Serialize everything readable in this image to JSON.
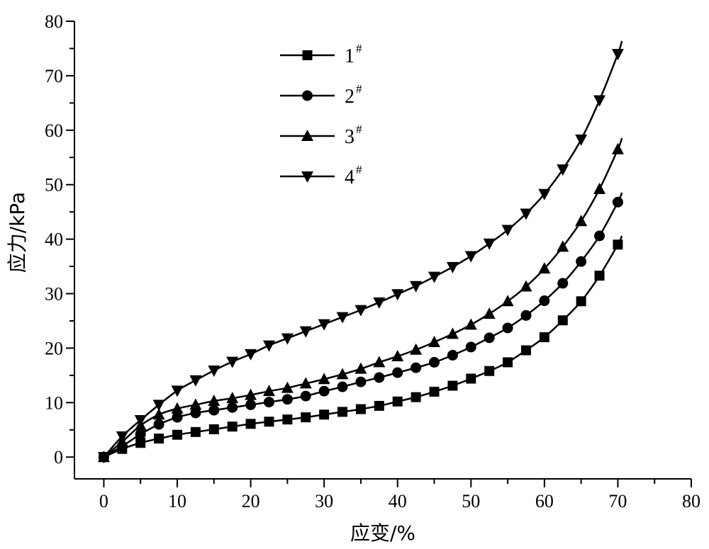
{
  "chart_data": {
    "type": "line",
    "xlabel": "应变/%",
    "ylabel": "应力/kPa",
    "xlim": [
      -4,
      80
    ],
    "ylim": [
      -4,
      80
    ],
    "x_ticks": [
      0,
      10,
      20,
      30,
      40,
      50,
      60,
      70,
      80
    ],
    "y_ticks": [
      0,
      10,
      20,
      30,
      40,
      50,
      60,
      70,
      80
    ],
    "grid": false,
    "legend_position": "top-center",
    "series": [
      {
        "name": "1",
        "superscript": "#",
        "marker": "square",
        "x": [
          0,
          2.5,
          5,
          7.5,
          10,
          12.5,
          15,
          17.5,
          20,
          22.5,
          25,
          27.5,
          30,
          32.5,
          35,
          37.5,
          40,
          42.5,
          45,
          47.5,
          50,
          52.5,
          55,
          57.5,
          60,
          62.5,
          65,
          67.5,
          70
        ],
        "values": [
          0,
          1.5,
          2.6,
          3.4,
          4.1,
          4.6,
          5.1,
          5.6,
          6.1,
          6.5,
          6.9,
          7.3,
          7.8,
          8.3,
          8.8,
          9.4,
          10.2,
          11.0,
          12.0,
          13.1,
          14.4,
          15.8,
          17.4,
          19.6,
          22.0,
          25.1,
          28.6,
          33.3,
          39.0
        ]
      },
      {
        "name": "2",
        "superscript": "#",
        "marker": "circle",
        "x": [
          0,
          2.5,
          5,
          7.5,
          10,
          12.5,
          15,
          17.5,
          20,
          22.5,
          25,
          27.5,
          30,
          32.5,
          35,
          37.5,
          40,
          42.5,
          45,
          47.5,
          50,
          52.5,
          55,
          57.5,
          60,
          62.5,
          65,
          67.5,
          70
        ],
        "values": [
          0,
          2.0,
          4.2,
          6.0,
          7.3,
          8.1,
          8.6,
          9.1,
          9.6,
          10.1,
          10.6,
          11.2,
          12.1,
          12.9,
          13.8,
          14.6,
          15.5,
          16.4,
          17.4,
          18.7,
          20.2,
          21.9,
          23.7,
          26.0,
          28.7,
          31.9,
          35.9,
          40.6,
          46.8
        ]
      },
      {
        "name": "3",
        "superscript": "#",
        "marker": "triangle-up",
        "x": [
          0,
          2.5,
          5,
          7.5,
          10,
          12.5,
          15,
          17.5,
          20,
          22.5,
          25,
          27.5,
          30,
          32.5,
          35,
          37.5,
          40,
          42.5,
          45,
          47.5,
          50,
          52.5,
          55,
          57.5,
          60,
          62.5,
          65,
          67.5,
          70
        ],
        "values": [
          0,
          2.8,
          5.8,
          7.8,
          8.9,
          9.6,
          10.3,
          10.8,
          11.4,
          12.1,
          12.7,
          13.5,
          14.3,
          15.2,
          16.2,
          17.4,
          18.5,
          19.7,
          21.1,
          22.6,
          24.3,
          26.3,
          28.6,
          31.3,
          34.6,
          38.6,
          43.3,
          49.2,
          56.5
        ]
      },
      {
        "name": "4",
        "superscript": "#",
        "marker": "triangle-down",
        "x": [
          0,
          2.5,
          5,
          7.5,
          10,
          12.5,
          15,
          17.5,
          20,
          22.5,
          25,
          27.5,
          30,
          32.5,
          35,
          37.5,
          40,
          42.5,
          45,
          47.5,
          50,
          52.5,
          55,
          57.5,
          60,
          62.5,
          65,
          67.5,
          70
        ],
        "values": [
          0,
          3.8,
          6.8,
          9.6,
          12.2,
          14.1,
          15.9,
          17.5,
          18.9,
          20.5,
          21.8,
          23.1,
          24.4,
          25.7,
          27.0,
          28.4,
          29.9,
          31.4,
          33.1,
          34.9,
          36.9,
          39.2,
          41.7,
          44.7,
          48.3,
          52.8,
          58.3,
          65.5,
          74.0
        ]
      }
    ]
  }
}
